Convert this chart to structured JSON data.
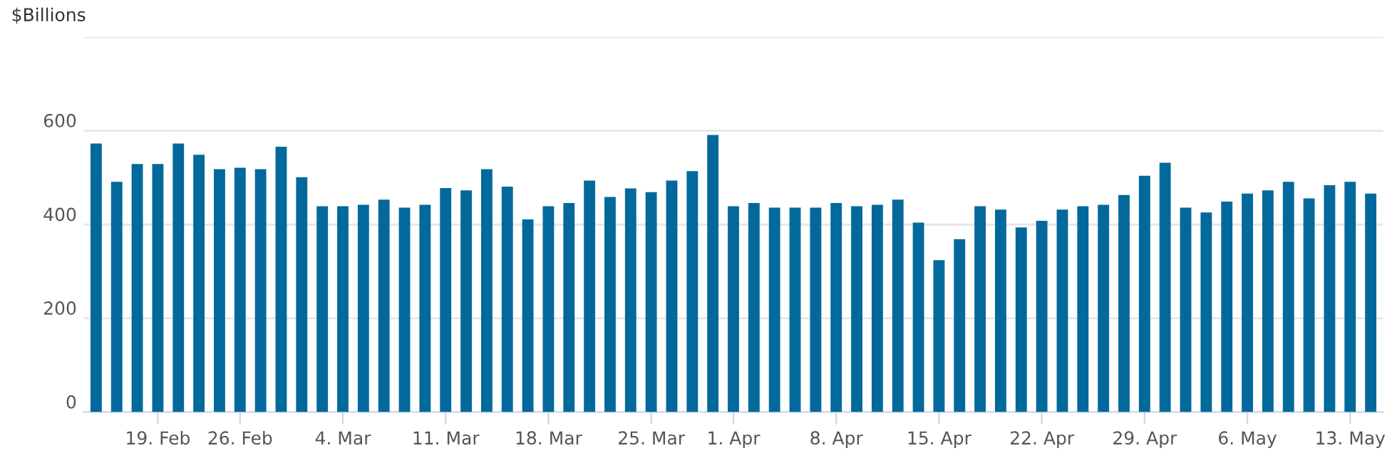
{
  "chart_data": {
    "type": "bar",
    "ylabel": "$Billions",
    "categories": [
      null,
      null,
      null,
      "19. Feb",
      null,
      null,
      null,
      "26. Feb",
      null,
      null,
      null,
      null,
      "4. Mar",
      null,
      null,
      null,
      null,
      "11. Mar",
      null,
      null,
      null,
      null,
      "18. Mar",
      null,
      null,
      null,
      null,
      "25. Mar",
      null,
      null,
      null,
      "1. Apr",
      null,
      null,
      null,
      null,
      "8. Apr",
      null,
      null,
      null,
      null,
      "15. Apr",
      null,
      null,
      null,
      null,
      "22. Apr",
      null,
      null,
      null,
      null,
      "29. Apr",
      null,
      null,
      null,
      null,
      "6. May",
      null,
      null,
      null,
      null,
      "13. May",
      null
    ],
    "values": [
      573,
      491,
      529,
      529,
      573,
      549,
      518,
      521,
      518,
      566,
      501,
      439,
      439,
      442,
      453,
      436,
      442,
      478,
      473,
      518,
      481,
      411,
      439,
      446,
      494,
      459,
      477,
      469,
      494,
      514,
      591,
      439,
      446,
      436,
      436,
      436,
      446,
      439,
      442,
      453,
      404,
      324,
      369,
      439,
      432,
      394,
      408,
      432,
      439,
      442,
      463,
      504,
      532,
      436,
      426,
      449,
      466,
      473,
      491,
      456,
      484,
      491,
      466
    ],
    "color": "#03699c",
    "ylim": [
      0,
      800
    ],
    "yticks": [
      0,
      200,
      400,
      600,
      {
        "value": 800,
        "label": null
      }
    ],
    "grid": "y"
  }
}
